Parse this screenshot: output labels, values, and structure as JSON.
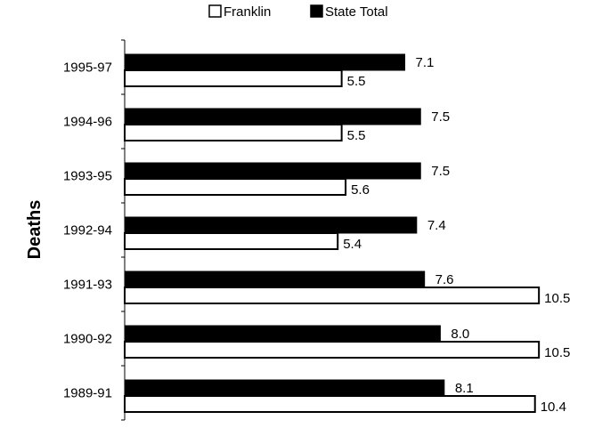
{
  "chart_data": {
    "type": "bar",
    "orientation": "horizontal",
    "categories": [
      "1995-97",
      "1994-96",
      "1993-95",
      "1992-94",
      "1991-93",
      "1990-92",
      "1989-91"
    ],
    "series": [
      {
        "name": "Franklin",
        "values": [
          5.5,
          5.5,
          5.6,
          5.4,
          10.5,
          10.5,
          10.4
        ],
        "color": "#ffffff"
      },
      {
        "name": "State Total",
        "values": [
          7.1,
          7.5,
          7.5,
          7.4,
          7.6,
          8.0,
          8.1
        ],
        "color": "#000000"
      }
    ],
    "data_labels": {
      "Franklin": [
        "5.5",
        "5.5",
        "5.6",
        "5.4",
        "10.5",
        "10.5",
        "10.4"
      ],
      "State Total": [
        "7.1",
        "7.5",
        "7.5",
        "7.4",
        "7.6",
        "8.0",
        "8.1"
      ]
    },
    "ylabel": "Deaths",
    "xlim": [
      0,
      10.5
    ],
    "grid": false,
    "legend_position": "top-center"
  }
}
